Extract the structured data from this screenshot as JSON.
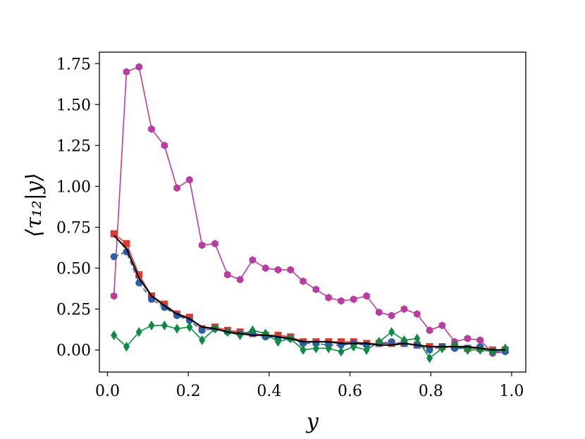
{
  "chart_data": {
    "type": "line",
    "title": "",
    "xlabel": "y",
    "ylabel": "⟨τ₁₂|y⟩",
    "xlim": [
      -0.02,
      1.035
    ],
    "ylim": [
      -0.135,
      1.82
    ],
    "xticks": [
      0.0,
      0.2,
      0.4,
      0.6,
      0.8,
      1.0
    ],
    "xtick_labels": [
      "0.0",
      "0.2",
      "0.4",
      "0.6",
      "0.8",
      "1.0"
    ],
    "yticks": [
      0.0,
      0.25,
      0.5,
      0.75,
      1.0,
      1.25,
      1.5,
      1.75
    ],
    "ytick_labels": [
      "0.00",
      "0.25",
      "0.50",
      "0.75",
      "1.00",
      "1.25",
      "1.50",
      "1.75"
    ],
    "grid": false,
    "x": [
      0.016,
      0.047,
      0.078,
      0.109,
      0.141,
      0.172,
      0.203,
      0.234,
      0.266,
      0.297,
      0.328,
      0.359,
      0.391,
      0.422,
      0.453,
      0.484,
      0.516,
      0.547,
      0.578,
      0.609,
      0.641,
      0.672,
      0.703,
      0.734,
      0.766,
      0.797,
      0.828,
      0.859,
      0.891,
      0.922,
      0.953,
      0.984
    ],
    "series": [
      {
        "color": "#b83d9f",
        "marker": "hexagon",
        "linestyle": "solid",
        "values": [
          0.33,
          1.7,
          1.73,
          1.35,
          1.25,
          0.99,
          1.04,
          0.64,
          0.65,
          0.46,
          0.43,
          0.55,
          0.5,
          0.49,
          0.49,
          0.42,
          0.37,
          0.32,
          0.3,
          0.31,
          0.33,
          0.23,
          0.21,
          0.25,
          0.22,
          0.12,
          0.15,
          0.05,
          0.07,
          0.06,
          -0.02,
          -0.01
        ]
      },
      {
        "color": "#e03a33",
        "marker": "square",
        "linestyle": "solid",
        "values": [
          0.71,
          0.65,
          0.46,
          0.33,
          0.28,
          0.22,
          0.2,
          0.13,
          0.14,
          0.12,
          0.11,
          0.1,
          0.09,
          0.09,
          0.08,
          0.05,
          0.05,
          0.05,
          0.05,
          0.05,
          0.04,
          0.04,
          0.04,
          0.04,
          0.03,
          0.02,
          0.02,
          0.02,
          0.01,
          0.01,
          0.0,
          0.0
        ]
      },
      {
        "color": "#2c5ea8",
        "marker": "circle",
        "linestyle": "dashed",
        "values": [
          0.57,
          0.6,
          0.41,
          0.31,
          0.26,
          0.21,
          0.18,
          0.12,
          0.13,
          0.11,
          0.1,
          0.1,
          0.08,
          0.07,
          0.07,
          0.04,
          0.04,
          0.03,
          0.03,
          0.04,
          0.03,
          0.04,
          0.05,
          0.04,
          0.03,
          0.0,
          0.02,
          0.01,
          0.01,
          0.02,
          -0.01,
          -0.01
        ]
      },
      {
        "color": "#0f8a43",
        "marker": "diamond",
        "linestyle": "solid",
        "values": [
          0.09,
          0.02,
          0.11,
          0.15,
          0.15,
          0.13,
          0.14,
          0.06,
          0.13,
          0.11,
          0.09,
          0.12,
          0.1,
          0.05,
          0.07,
          0.0,
          0.01,
          0.01,
          -0.01,
          0.02,
          0.0,
          0.05,
          0.11,
          0.06,
          0.07,
          -0.05,
          0.01,
          0.03,
          0.0,
          0.0,
          -0.01,
          0.01
        ]
      },
      {
        "color": "#000000",
        "marker": "none",
        "linestyle": "solid",
        "values": [
          0.7,
          0.62,
          0.44,
          0.33,
          0.27,
          0.22,
          0.19,
          0.14,
          0.13,
          0.11,
          0.1,
          0.09,
          0.09,
          0.08,
          0.07,
          0.05,
          0.05,
          0.05,
          0.04,
          0.04,
          0.04,
          0.03,
          0.03,
          0.04,
          0.03,
          0.02,
          0.02,
          0.02,
          0.02,
          0.01,
          0.0,
          0.0
        ]
      }
    ]
  }
}
